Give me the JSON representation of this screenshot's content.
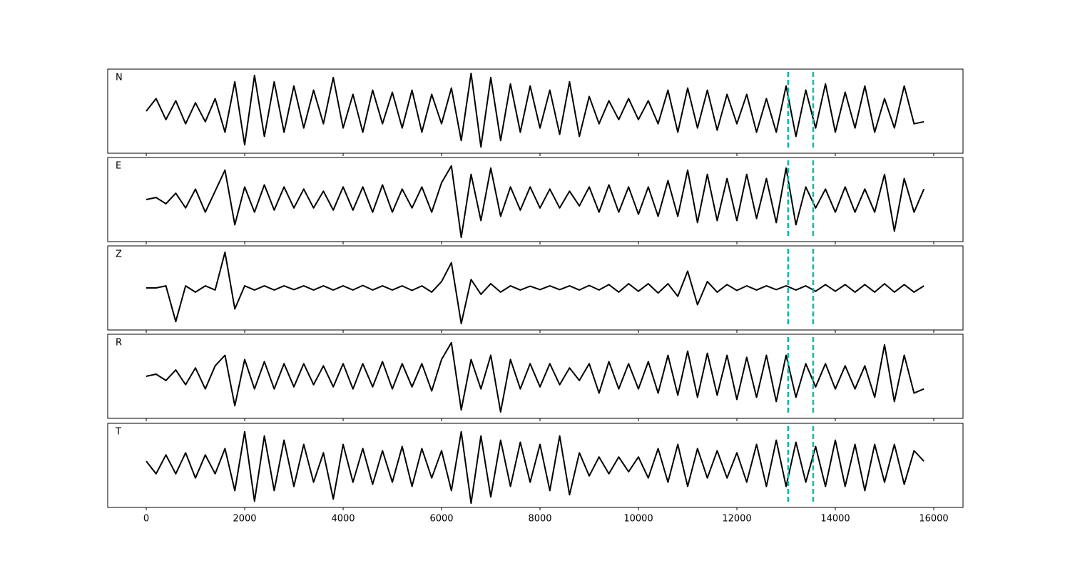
{
  "chart_data": {
    "type": "line",
    "x": [
      0,
      200,
      400,
      600,
      800,
      1000,
      1200,
      1400,
      1600,
      1800,
      2000,
      2200,
      2400,
      2600,
      2800,
      3000,
      3200,
      3400,
      3600,
      3800,
      4000,
      4200,
      4400,
      4600,
      4800,
      5000,
      5200,
      5400,
      5600,
      5800,
      6000,
      6200,
      6400,
      6600,
      6800,
      7000,
      7200,
      7400,
      7600,
      7800,
      8000,
      8200,
      8400,
      8600,
      8800,
      9000,
      9200,
      9400,
      9600,
      9800,
      10000,
      10200,
      10400,
      10600,
      10800,
      11000,
      11200,
      11400,
      11600,
      11800,
      12000,
      12200,
      12400,
      12600,
      12800,
      13000,
      13200,
      13400,
      13600,
      13800,
      14000,
      14200,
      14400,
      14600,
      14800,
      15000,
      15200,
      15400,
      15600,
      15800
    ],
    "series": [
      {
        "name": "N",
        "color": "#000000",
        "values": [
          0,
          0.3,
          -0.2,
          0.25,
          -0.3,
          0.2,
          -0.25,
          0.3,
          -0.5,
          0.7,
          -0.8,
          0.85,
          -0.6,
          0.7,
          -0.5,
          0.6,
          -0.4,
          0.5,
          -0.3,
          0.8,
          -0.4,
          0.4,
          -0.5,
          0.5,
          -0.3,
          0.45,
          -0.4,
          0.5,
          -0.5,
          0.4,
          -0.3,
          0.55,
          -0.7,
          0.9,
          -0.85,
          0.8,
          -0.7,
          0.65,
          -0.5,
          0.6,
          -0.4,
          0.5,
          -0.55,
          0.7,
          -0.6,
          0.35,
          -0.3,
          0.25,
          -0.2,
          0.3,
          -0.2,
          0.25,
          -0.3,
          0.5,
          -0.5,
          0.55,
          -0.4,
          0.5,
          -0.45,
          0.4,
          -0.3,
          0.4,
          -0.5,
          0.3,
          -0.5,
          0.6,
          -0.6,
          0.5,
          -0.4,
          0.65,
          -0.5,
          0.45,
          -0.4,
          0.6,
          -0.5,
          0.3,
          -0.4,
          0.6,
          -0.3,
          -0.25
        ]
      },
      {
        "name": "E",
        "color": "#000000",
        "values": [
          0,
          0.05,
          -0.1,
          0.15,
          -0.2,
          0.25,
          -0.3,
          0.2,
          0.7,
          -0.6,
          0.3,
          -0.3,
          0.35,
          -0.25,
          0.3,
          -0.2,
          0.25,
          -0.2,
          0.2,
          -0.25,
          0.3,
          -0.25,
          0.3,
          -0.3,
          0.35,
          -0.3,
          0.25,
          -0.2,
          0.3,
          -0.3,
          0.4,
          0.8,
          -0.9,
          0.6,
          -0.5,
          0.75,
          -0.4,
          0.3,
          -0.25,
          0.3,
          -0.2,
          0.25,
          -0.2,
          0.2,
          -0.15,
          0.3,
          -0.3,
          0.35,
          -0.3,
          0.3,
          -0.35,
          0.3,
          -0.4,
          0.45,
          -0.4,
          0.7,
          -0.55,
          0.6,
          -0.5,
          0.5,
          -0.5,
          0.6,
          -0.45,
          0.5,
          -0.55,
          0.75,
          -0.6,
          0.3,
          -0.2,
          0.25,
          -0.3,
          0.3,
          -0.3,
          0.25,
          -0.3,
          0.6,
          -0.75,
          0.5,
          -0.3,
          0.25
        ]
      },
      {
        "name": "Z",
        "color": "#000000",
        "values": [
          0,
          0,
          0.05,
          -0.8,
          0.05,
          -0.1,
          0.05,
          -0.05,
          0.85,
          -0.5,
          0.05,
          -0.05,
          0.05,
          -0.05,
          0.05,
          -0.04,
          0.05,
          -0.05,
          0.05,
          -0.05,
          0.05,
          -0.05,
          0.06,
          -0.05,
          0.05,
          -0.05,
          0.05,
          -0.06,
          0.05,
          -0.1,
          0.15,
          0.6,
          -0.85,
          0.2,
          -0.15,
          0.1,
          -0.1,
          0.05,
          -0.05,
          0.04,
          -0.04,
          0.05,
          -0.04,
          0.05,
          -0.05,
          0.06,
          -0.05,
          0.08,
          -0.1,
          0.1,
          -0.08,
          0.1,
          -0.12,
          0.1,
          -0.2,
          0.4,
          -0.4,
          0.15,
          -0.1,
          0.08,
          -0.06,
          0.05,
          -0.05,
          0.05,
          -0.04,
          0.05,
          -0.05,
          0.05,
          -0.08,
          0.08,
          -0.08,
          0.08,
          -0.1,
          0.08,
          -0.1,
          0.1,
          -0.1,
          0.08,
          -0.1,
          0.05
        ]
      },
      {
        "name": "R",
        "color": "#000000",
        "values": [
          0,
          0.05,
          -0.1,
          0.15,
          -0.2,
          0.2,
          -0.3,
          0.25,
          0.5,
          -0.7,
          0.4,
          -0.3,
          0.35,
          -0.3,
          0.3,
          -0.25,
          0.3,
          -0.2,
          0.25,
          -0.25,
          0.3,
          -0.3,
          0.3,
          -0.25,
          0.35,
          -0.3,
          0.3,
          -0.25,
          0.3,
          -0.35,
          0.4,
          0.8,
          -0.8,
          0.4,
          -0.3,
          0.5,
          -0.85,
          0.4,
          -0.3,
          0.3,
          -0.25,
          0.3,
          -0.2,
          0.2,
          -0.1,
          0.3,
          -0.4,
          0.35,
          -0.3,
          0.3,
          -0.3,
          0.35,
          -0.4,
          0.5,
          -0.45,
          0.6,
          -0.5,
          0.55,
          -0.45,
          0.5,
          -0.55,
          0.45,
          -0.5,
          0.5,
          -0.6,
          0.5,
          -0.5,
          0.3,
          -0.25,
          0.3,
          -0.3,
          0.25,
          -0.3,
          0.25,
          -0.5,
          0.75,
          -0.6,
          0.5,
          -0.4,
          -0.3
        ]
      },
      {
        "name": "T",
        "color": "#000000",
        "values": [
          0.1,
          -0.2,
          0.25,
          -0.2,
          0.3,
          -0.3,
          0.25,
          -0.2,
          0.4,
          -0.6,
          0.8,
          -0.85,
          0.7,
          -0.6,
          0.6,
          -0.5,
          0.5,
          -0.4,
          0.3,
          -0.8,
          0.5,
          -0.4,
          0.4,
          -0.45,
          0.35,
          -0.4,
          0.45,
          -0.5,
          0.4,
          -0.3,
          0.35,
          -0.6,
          0.8,
          -0.9,
          0.7,
          -0.75,
          0.6,
          -0.5,
          0.55,
          -0.4,
          0.5,
          -0.6,
          0.7,
          -0.7,
          0.3,
          -0.25,
          0.2,
          -0.2,
          0.2,
          -0.15,
          0.2,
          -0.3,
          0.4,
          -0.4,
          0.5,
          -0.5,
          0.4,
          -0.3,
          0.35,
          -0.3,
          0.3,
          -0.4,
          0.5,
          -0.5,
          0.6,
          -0.5,
          0.55,
          -0.4,
          0.45,
          -0.5,
          0.6,
          -0.5,
          0.5,
          -0.6,
          0.5,
          -0.4,
          0.5,
          -0.45,
          0.35,
          0.1
        ]
      }
    ],
    "xlim": [
      -783,
      16594
    ],
    "xticks": [
      0,
      2000,
      4000,
      6000,
      8000,
      10000,
      12000,
      14000,
      16000
    ],
    "ylim": [
      -1,
      1
    ],
    "vlines": {
      "values": [
        13040,
        13550
      ],
      "color": "#00bfae"
    }
  }
}
